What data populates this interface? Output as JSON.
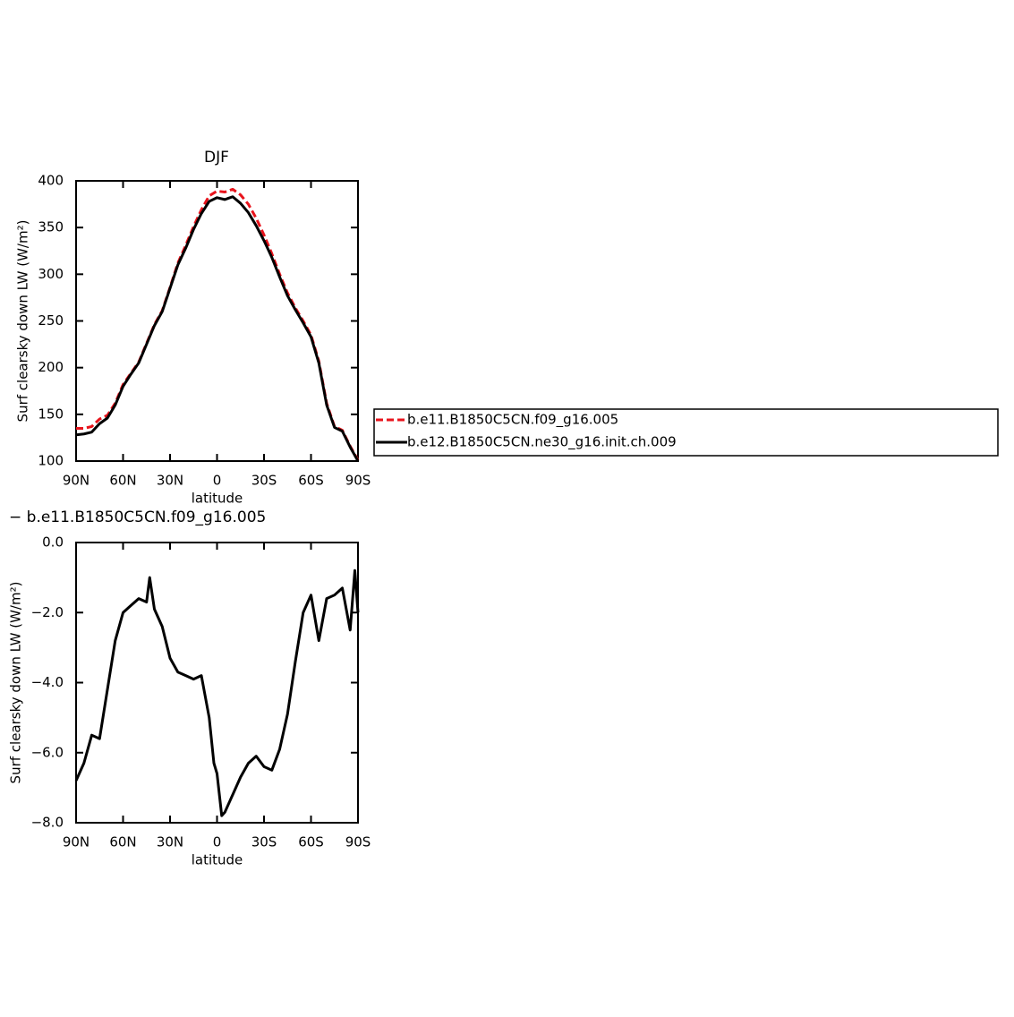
{
  "chart_data": [
    {
      "type": "line",
      "title": "DJF",
      "x_label": "latitude",
      "y_label": "Surf clearsky down LW (W/m²)",
      "xlim": [
        90,
        -90
      ],
      "xticks": [
        {
          "value": 90,
          "label": "90N"
        },
        {
          "value": 60,
          "label": "60N"
        },
        {
          "value": 30,
          "label": "30N"
        },
        0,
        {
          "value": -30,
          "label": "30S"
        },
        {
          "value": -60,
          "label": "60S"
        },
        {
          "value": -90,
          "label": "90S"
        }
      ],
      "ylim": [
        100,
        400
      ],
      "yticks": [
        100,
        150,
        200,
        250,
        300,
        350,
        400
      ],
      "legend": "right",
      "x": [
        90,
        85,
        80,
        75,
        70,
        65,
        60,
        55,
        50,
        45,
        40,
        35,
        30,
        25,
        20,
        15,
        10,
        5,
        0,
        -5,
        -10,
        -15,
        -20,
        -25,
        -30,
        -35,
        -40,
        -45,
        -50,
        -55,
        -60,
        -65,
        -70,
        -75,
        -80,
        -85,
        -90
      ],
      "series": [
        {
          "name": "b.e11.B1850C5CN.f09_g16.005",
          "color": "#e8141c",
          "dash": true,
          "values": [
            135,
            135,
            137,
            145,
            149,
            162,
            182,
            194,
            206,
            226,
            246,
            261,
            286,
            312,
            331,
            351,
            369,
            384,
            389,
            388,
            391,
            385,
            375,
            360,
            342,
            322,
            300,
            280,
            264,
            250,
            235,
            207,
            162,
            137,
            133,
            116,
            101
          ]
        },
        {
          "name": "b.e12.B1850C5CN.ne30_g16.init.ch.009",
          "color": "#000000",
          "dash": false,
          "values": [
            128,
            129,
            131,
            140,
            146,
            160,
            180,
            193,
            205,
            225,
            245,
            260,
            285,
            310,
            328,
            348,
            365,
            378,
            382,
            380,
            383,
            376,
            366,
            352,
            336,
            318,
            297,
            277,
            262,
            248,
            233,
            205,
            160,
            136,
            132,
            115,
            100
          ]
        }
      ]
    },
    {
      "type": "line",
      "title": "− b.e11.B1850C5CN.f09_g16.005",
      "x_label": "latitude",
      "y_label": "Surf clearsky down LW (W/m²)",
      "xlim": [
        90,
        -90
      ],
      "xticks": [
        {
          "value": 90,
          "label": "90N"
        },
        {
          "value": 60,
          "label": "60N"
        },
        {
          "value": 30,
          "label": "30N"
        },
        0,
        {
          "value": -30,
          "label": "30S"
        },
        {
          "value": -60,
          "label": "60S"
        },
        {
          "value": -90,
          "label": "90S"
        }
      ],
      "ylim": [
        -8,
        0
      ],
      "yticks": [
        {
          "value": -8,
          "label": "−8.0"
        },
        {
          "value": -6,
          "label": "−6.0"
        },
        {
          "value": -4,
          "label": "−4.0"
        },
        {
          "value": -2,
          "label": "−2.0"
        },
        {
          "value": 0,
          "label": "0.0"
        }
      ],
      "x": [
        90,
        85,
        80,
        75,
        70,
        65,
        60,
        55,
        50,
        45,
        43,
        40,
        35,
        30,
        25,
        20,
        15,
        10,
        5,
        2,
        0,
        -3,
        -5,
        -10,
        -15,
        -20,
        -25,
        -30,
        -35,
        -40,
        -45,
        -50,
        -55,
        -60,
        -65,
        -70,
        -75,
        -80,
        -85,
        -88,
        -90
      ],
      "series": [
        {
          "color": "#000000",
          "dash": false,
          "values": [
            -6.8,
            -6.3,
            -5.5,
            -5.6,
            -4.2,
            -2.8,
            -2.0,
            -1.8,
            -1.6,
            -1.7,
            -1.0,
            -1.9,
            -2.4,
            -3.3,
            -3.7,
            -3.8,
            -3.9,
            -3.8,
            -5.0,
            -6.3,
            -6.6,
            -7.8,
            -7.7,
            -7.2,
            -6.7,
            -6.3,
            -6.1,
            -6.4,
            -6.5,
            -5.9,
            -4.9,
            -3.4,
            -2.0,
            -1.5,
            -2.8,
            -1.6,
            -1.5,
            -1.3,
            -2.5,
            -0.8,
            -2.0
          ]
        }
      ]
    }
  ]
}
